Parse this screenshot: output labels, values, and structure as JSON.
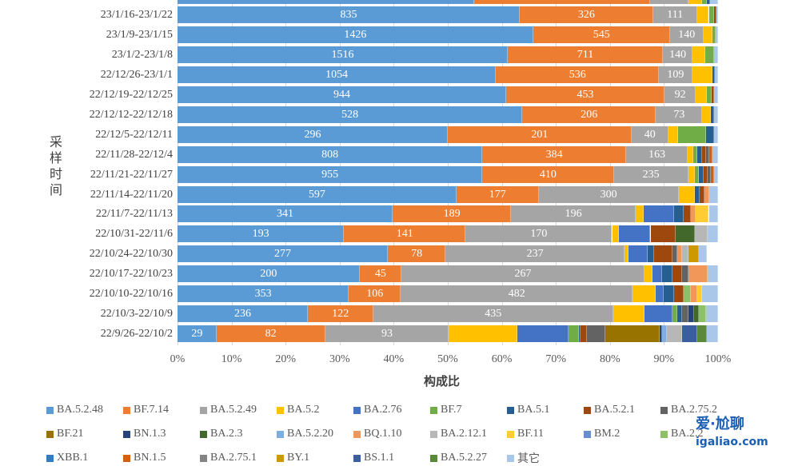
{
  "chart_data": {
    "type": "bar",
    "orientation": "horizontal-stacked-100",
    "xlabel": "构成比",
    "ylabel": "采样时间",
    "xticks": [
      "0%",
      "10%",
      "20%",
      "30%",
      "40%",
      "50%",
      "60%",
      "70%",
      "80%",
      "90%",
      "100%"
    ],
    "xlim": [
      0,
      100
    ],
    "legend_position": "bottom",
    "series": [
      {
        "name": "BA.5.2.48",
        "color": "#5b9bd5"
      },
      {
        "name": "BF.7.14",
        "color": "#ed7d31"
      },
      {
        "name": "BA.5.2.49",
        "color": "#a5a5a5"
      },
      {
        "name": "BA.5.2",
        "color": "#ffc000"
      },
      {
        "name": "BA.2.76",
        "color": "#4472c4"
      },
      {
        "name": "BF.7",
        "color": "#70ad47"
      },
      {
        "name": "BA.5.1",
        "color": "#255e91"
      },
      {
        "name": "BA.5.2.1",
        "color": "#9e480e"
      },
      {
        "name": "BA.2.75.2",
        "color": "#636363"
      },
      {
        "name": "BF.21",
        "color": "#997300"
      },
      {
        "name": "BN.1.3",
        "color": "#264478"
      },
      {
        "name": "BA.2.3",
        "color": "#43682b"
      },
      {
        "name": "BA.5.2.20",
        "color": "#7cafdd"
      },
      {
        "name": "BQ.1.10",
        "color": "#f1975a"
      },
      {
        "name": "BA.2.12.1",
        "color": "#b7b7b7"
      },
      {
        "name": "BF.11",
        "color": "#ffcd33"
      },
      {
        "name": "BM.2",
        "color": "#698ed0"
      },
      {
        "name": "BA.2.2",
        "color": "#8cc168"
      },
      {
        "name": "XBB.1",
        "color": "#327dc2"
      },
      {
        "name": "BN.1.5",
        "color": "#d26012"
      },
      {
        "name": "BA.2.75.1",
        "color": "#848484"
      },
      {
        "name": "BY.1",
        "color": "#cc9a00"
      },
      {
        "name": "BS.1.1",
        "color": "#3a5e9f"
      },
      {
        "name": "BA.5.2.27",
        "color": "#5a8a39"
      },
      {
        "name": "其它",
        "color": "#a9c7e8"
      }
    ],
    "rows": [
      {
        "category": "",
        "labels": [
          "",
          "",
          ""
        ],
        "shares": [
          [
            0,
            54.9
          ],
          [
            1,
            32.5
          ],
          [
            2,
            7.2
          ],
          [
            3,
            2.4
          ],
          [
            5,
            1
          ],
          [
            6,
            0.5
          ],
          [
            24,
            1.5
          ]
        ]
      },
      {
        "category": "23/1/16-23/1/22",
        "labels": [
          "835",
          "326",
          "111"
        ],
        "shares": [
          [
            0,
            63.3
          ],
          [
            1,
            24.7
          ],
          [
            2,
            8.1
          ],
          [
            3,
            2.2
          ],
          [
            5,
            0.9
          ],
          [
            7,
            0.5
          ],
          [
            24,
            0.3
          ]
        ]
      },
      {
        "category": "23/1/9-23/1/15",
        "labels": [
          "1426",
          "545",
          "140"
        ],
        "shares": [
          [
            0,
            65.8
          ],
          [
            1,
            25.3
          ],
          [
            2,
            6.2
          ],
          [
            3,
            1.6
          ],
          [
            5,
            0.6
          ],
          [
            24,
            0.5
          ]
        ]
      },
      {
        "category": "23/1/2-23/1/8",
        "labels": [
          "1516",
          "711",
          "140"
        ],
        "shares": [
          [
            0,
            61.1
          ],
          [
            1,
            28.7
          ],
          [
            2,
            5.5
          ],
          [
            3,
            2.4
          ],
          [
            5,
            1.6
          ],
          [
            24,
            0.7
          ]
        ]
      },
      {
        "category": "22/12/26-23/1/1",
        "labels": [
          "1054",
          "536",
          "109"
        ],
        "shares": [
          [
            0,
            58.9
          ],
          [
            1,
            30.2
          ],
          [
            2,
            6.1
          ],
          [
            3,
            3.7
          ],
          [
            6,
            0.5
          ],
          [
            24,
            0.6
          ]
        ]
      },
      {
        "category": "22/12/19-22/12/25",
        "labels": [
          "944",
          "453",
          "92"
        ],
        "shares": [
          [
            0,
            60.8
          ],
          [
            1,
            29.3
          ],
          [
            2,
            5.8
          ],
          [
            3,
            2.1
          ],
          [
            5,
            0.8
          ],
          [
            7,
            0.5
          ],
          [
            24,
            0.7
          ]
        ]
      },
      {
        "category": "22/12/12-22/12/18",
        "labels": [
          "528",
          "206",
          "73"
        ],
        "shares": [
          [
            0,
            63.8
          ],
          [
            1,
            24.7
          ],
          [
            2,
            8.6
          ],
          [
            3,
            1.6
          ],
          [
            6,
            0.6
          ],
          [
            24,
            0.7
          ]
        ]
      },
      {
        "category": "22/12/5-22/12/11",
        "labels": [
          "296",
          "201",
          "40"
        ],
        "shares": [
          [
            0,
            50.0
          ],
          [
            1,
            34.0
          ],
          [
            2,
            6.8
          ],
          [
            3,
            1.8
          ],
          [
            5,
            5.2
          ],
          [
            6,
            1.5
          ],
          [
            24,
            0.7
          ]
        ]
      },
      {
        "category": "22/11/28-22/12/4",
        "labels": [
          "808",
          "384",
          "163"
        ],
        "shares": [
          [
            0,
            56.4
          ],
          [
            1,
            26.6
          ],
          [
            2,
            11.4
          ],
          [
            3,
            1.0
          ],
          [
            5,
            0.8
          ],
          [
            6,
            0.8
          ],
          [
            7,
            0.8
          ],
          [
            8,
            0.6
          ],
          [
            19,
            0.6
          ],
          [
            24,
            1.0
          ]
        ]
      },
      {
        "category": "22/11/21-22/11/27",
        "labels": [
          "955",
          "410",
          "235"
        ],
        "shares": [
          [
            0,
            56.4
          ],
          [
            1,
            24.3
          ],
          [
            2,
            13.8
          ],
          [
            3,
            1.2
          ],
          [
            5,
            0.8
          ],
          [
            6,
            0.8
          ],
          [
            7,
            0.8
          ],
          [
            8,
            0.6
          ],
          [
            19,
            0.5
          ],
          [
            24,
            0.8
          ]
        ]
      },
      {
        "category": "22/11/14-22/11/20",
        "labels": [
          "597",
          "177",
          "300"
        ],
        "shares": [
          [
            0,
            51.6
          ],
          [
            1,
            15.2
          ],
          [
            2,
            25.9
          ],
          [
            3,
            3.0
          ],
          [
            6,
            0.9
          ],
          [
            7,
            0.9
          ],
          [
            13,
            0.9
          ],
          [
            24,
            1.6
          ]
        ]
      },
      {
        "category": "22/11/7-22/11/13",
        "labels": [
          "341",
          "189",
          "196"
        ],
        "shares": [
          [
            0,
            39.8
          ],
          [
            1,
            21.9
          ],
          [
            2,
            23.1
          ],
          [
            3,
            1.5
          ],
          [
            4,
            5.6
          ],
          [
            6,
            1.8
          ],
          [
            7,
            1.2
          ],
          [
            13,
            0.9
          ],
          [
            15,
            2.5
          ],
          [
            24,
            1.7
          ]
        ]
      },
      {
        "category": "22/10/31-22/11/6",
        "labels": [
          "193",
          "141",
          "170"
        ],
        "shares": [
          [
            0,
            30.8
          ],
          [
            1,
            22.5
          ],
          [
            2,
            27.1
          ],
          [
            3,
            1.3
          ],
          [
            4,
            5.8
          ],
          [
            7,
            4.6
          ],
          [
            11,
            3.6
          ],
          [
            14,
            2.4
          ],
          [
            24,
            1.9
          ]
        ]
      },
      {
        "category": "22/10/24-22/10/30",
        "labels": [
          "277",
          "78",
          "237"
        ],
        "shares": [
          [
            0,
            38.9
          ],
          [
            1,
            10.7
          ],
          [
            2,
            33.1
          ],
          [
            3,
            0.7
          ],
          [
            4,
            3.6
          ],
          [
            6,
            1.2
          ],
          [
            7,
            3.3
          ],
          [
            8,
            0.9
          ],
          [
            13,
            0.9
          ],
          [
            14,
            1.2
          ],
          [
            21,
            1.9
          ],
          [
            24,
            1.6
          ]
        ]
      },
      {
        "category": "22/10/17-22/10/23",
        "labels": [
          "200",
          "45",
          "267"
        ],
        "shares": [
          [
            0,
            33.7
          ],
          [
            1,
            7.7
          ],
          [
            2,
            45.0
          ],
          [
            3,
            1.5
          ],
          [
            4,
            1.8
          ],
          [
            6,
            1.8
          ],
          [
            7,
            1.8
          ],
          [
            8,
            1.2
          ],
          [
            13,
            3.6
          ],
          [
            24,
            1.9
          ]
        ]
      },
      {
        "category": "22/10/10-22/10/16",
        "labels": [
          "353",
          "106",
          "482"
        ],
        "shares": [
          [
            0,
            31.7
          ],
          [
            1,
            9.6
          ],
          [
            2,
            42.9
          ],
          [
            3,
            4.3
          ],
          [
            4,
            1.5
          ],
          [
            6,
            1.8
          ],
          [
            7,
            1.8
          ],
          [
            17,
            1.3
          ],
          [
            13,
            1.3
          ],
          [
            15,
            0.9
          ],
          [
            24,
            2.9
          ]
        ]
      },
      {
        "category": "22/10/3-22/10/9",
        "labels": [
          "236",
          "122",
          "435"
        ],
        "shares": [
          [
            0,
            24.1
          ],
          [
            1,
            12.1
          ],
          [
            2,
            44.4
          ],
          [
            3,
            5.8
          ],
          [
            4,
            5.2
          ],
          [
            5,
            0.9
          ],
          [
            6,
            0.9
          ],
          [
            8,
            1.2
          ],
          [
            10,
            1.0
          ],
          [
            11,
            0.9
          ],
          [
            17,
            1.3
          ],
          [
            24,
            2.2
          ]
        ]
      },
      {
        "category": "22/9/26-22/10/2",
        "labels": [
          "29",
          "82",
          "93"
        ],
        "shares": [
          [
            0,
            7.2
          ],
          [
            1,
            20.1
          ],
          [
            2,
            22.9
          ],
          [
            3,
            12.6
          ],
          [
            4,
            9.6
          ],
          [
            5,
            1.8
          ],
          [
            6,
            0.4
          ],
          [
            7,
            1.2
          ],
          [
            8,
            3.3
          ],
          [
            9,
            10.1
          ],
          [
            10,
            0.4
          ],
          [
            12,
            1.0
          ],
          [
            14,
            2.8
          ],
          [
            22,
            2.7
          ],
          [
            23,
            1.8
          ],
          [
            24,
            2.1
          ]
        ]
      }
    ]
  },
  "watermark": {
    "logo": "爱·尬聊",
    "url": "igaliao.com"
  }
}
